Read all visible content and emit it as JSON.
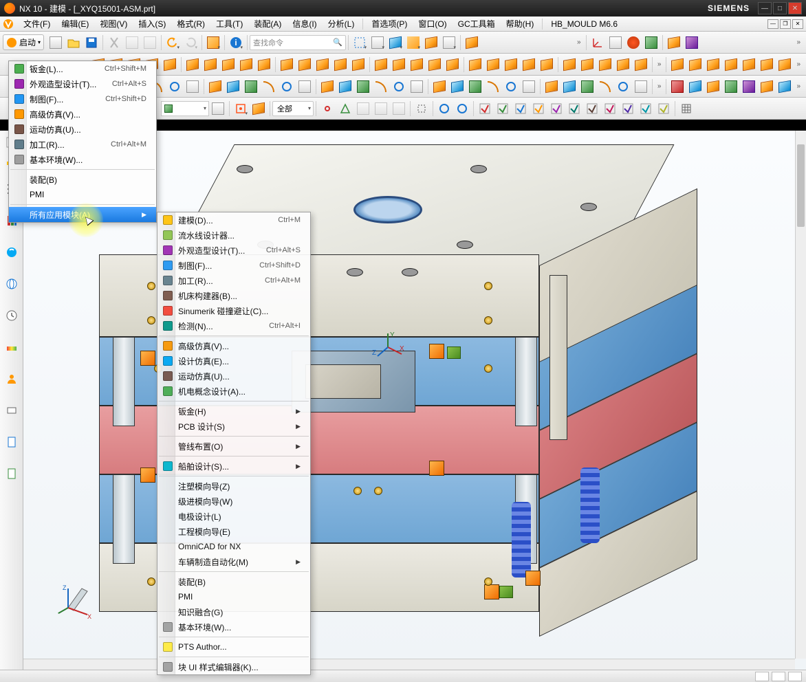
{
  "title": {
    "app": "NX 10 - 建模",
    "doc": "[_XYQ15001-ASM.prt]",
    "brand": "SIEMENS"
  },
  "menubar": [
    "文件(F)",
    "编辑(E)",
    "视图(V)",
    "插入(S)",
    "格式(R)",
    "工具(T)",
    "装配(A)",
    "信息(I)",
    "分析(L)",
    "|",
    "首选项(P)",
    "窗口(O)",
    "GC工具箱",
    "帮助(H)",
    "|",
    "HB_MOULD M6.6"
  ],
  "start_button": "启动",
  "search_placeholder": "查找命令",
  "filter_label": "全部",
  "menu1": {
    "groups": [
      [
        {
          "label": "钣金(L)...",
          "shortcut": "Ctrl+Shift+M",
          "icon": "#4CAF50"
        },
        {
          "label": "外观造型设计(T)...",
          "shortcut": "Ctrl+Alt+S",
          "icon": "#9C27B0"
        },
        {
          "label": "制图(F)...",
          "shortcut": "Ctrl+Shift+D",
          "icon": "#2196F3"
        },
        {
          "label": "高级仿真(V)...",
          "shortcut": "",
          "icon": "#FF9800"
        },
        {
          "label": "运动仿真(U)...",
          "shortcut": "",
          "icon": "#795548"
        },
        {
          "label": "加工(R)...",
          "shortcut": "Ctrl+Alt+M",
          "icon": "#607D8B"
        },
        {
          "label": "基本环境(W)...",
          "shortcut": "",
          "icon": "#9E9E9E"
        }
      ],
      [
        {
          "label": "装配(B)",
          "shortcut": "",
          "icon": ""
        },
        {
          "label": "PMI",
          "shortcut": "",
          "icon": ""
        }
      ],
      [
        {
          "label": "所有应用模块(A)",
          "shortcut": "",
          "icon": "",
          "highlight": true,
          "arrow": true
        }
      ]
    ]
  },
  "menu2": {
    "groups": [
      [
        {
          "label": "建模(D)...",
          "shortcut": "Ctrl+M",
          "icon": "#FFC107"
        },
        {
          "label": "流水线设计器...",
          "shortcut": "",
          "icon": "#8BC34A"
        },
        {
          "label": "外观造型设计(T)...",
          "shortcut": "Ctrl+Alt+S",
          "icon": "#9C27B0"
        },
        {
          "label": "制图(F)...",
          "shortcut": "Ctrl+Shift+D",
          "icon": "#2196F3"
        },
        {
          "label": "加工(R)...",
          "shortcut": "Ctrl+Alt+M",
          "icon": "#607D8B"
        },
        {
          "label": "机床构建器(B)...",
          "shortcut": "",
          "icon": "#795548"
        },
        {
          "label": "Sinumerik 碰撞避让(C)...",
          "shortcut": "",
          "icon": "#F44336"
        },
        {
          "label": "检测(N)...",
          "shortcut": "Ctrl+Alt+I",
          "icon": "#009688"
        }
      ],
      [
        {
          "label": "高级仿真(V)...",
          "shortcut": "",
          "icon": "#FF9800"
        },
        {
          "label": "设计仿真(E)...",
          "shortcut": "",
          "icon": "#03A9F4"
        },
        {
          "label": "运动仿真(U)...",
          "shortcut": "",
          "icon": "#795548"
        },
        {
          "label": "机电概念设计(A)...",
          "shortcut": "",
          "icon": "#4CAF50"
        }
      ],
      [
        {
          "label": "钣金(H)",
          "shortcut": "",
          "icon": "",
          "arrow": true
        },
        {
          "label": "PCB 设计(S)",
          "shortcut": "",
          "icon": "",
          "arrow": true
        }
      ],
      [
        {
          "label": "管线布置(O)",
          "shortcut": "",
          "icon": "",
          "arrow": true
        }
      ],
      [
        {
          "label": "船舶设计(S)...",
          "shortcut": "",
          "icon": "#00BCD4",
          "arrow": true
        }
      ],
      [
        {
          "label": "注塑模向导(Z)",
          "shortcut": "",
          "icon": ""
        },
        {
          "label": "级进模向导(W)",
          "shortcut": "",
          "icon": ""
        },
        {
          "label": "电极设计(L)",
          "shortcut": "",
          "icon": ""
        },
        {
          "label": "工程模向导(E)",
          "shortcut": "",
          "icon": ""
        },
        {
          "label": "OmniCAD for NX",
          "shortcut": "",
          "icon": ""
        },
        {
          "label": "车辆制造自动化(M)",
          "shortcut": "",
          "icon": "",
          "arrow": true
        }
      ],
      [
        {
          "label": "装配(B)",
          "shortcut": "",
          "icon": ""
        },
        {
          "label": "PMI",
          "shortcut": "",
          "icon": ""
        },
        {
          "label": "知识融合(G)",
          "shortcut": "",
          "icon": ""
        },
        {
          "label": "基本环境(W)...",
          "shortcut": "",
          "icon": "#9E9E9E"
        }
      ],
      [
        {
          "label": "PTS Author...",
          "shortcut": "",
          "icon": "#FFEB3B"
        }
      ],
      [
        {
          "label": "块 UI 样式编辑器(K)...",
          "shortcut": "",
          "icon": "#9E9E9E"
        }
      ]
    ]
  },
  "colors": {
    "top_plate": "#e4e4dc",
    "blue_plate": "#6fa6d4",
    "pink_plate": "#d77c7f",
    "spring": "#2b4fc7",
    "orange_block": "#ef6c00",
    "green_block": "#4a8b1f"
  }
}
